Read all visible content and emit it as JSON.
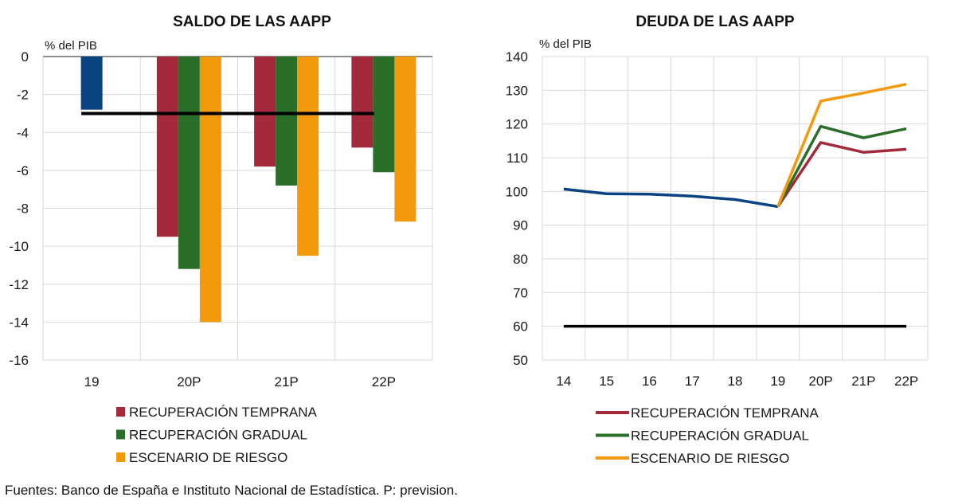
{
  "colors": {
    "temprana": "#a32a3a",
    "gradual": "#2a6e2a",
    "riesgo": "#f29a0c",
    "historical": "#0b4381",
    "reference": "#000000",
    "grid": "#d9d9d9"
  },
  "chart_data": [
    {
      "type": "bar",
      "title": "SALDO DE LAS AAPP",
      "unit_label": "% del PIB",
      "categories": [
        "19",
        "20P",
        "21P",
        "22P"
      ],
      "ylim": [
        -16,
        0
      ],
      "yticks": [
        0,
        -2,
        -4,
        -6,
        -8,
        -10,
        -12,
        -14,
        -16
      ],
      "grid": true,
      "historical": {
        "category": "19",
        "value": -2.8
      },
      "series": [
        {
          "name": "RECUPERACIÓN TEMPRANA",
          "values": [
            null,
            -9.5,
            -5.8,
            -4.8
          ]
        },
        {
          "name": "RECUPERACIÓN GRADUAL",
          "values": [
            null,
            -11.2,
            -6.8,
            -6.1
          ]
        },
        {
          "name": "ESCENARIO DE RIESGO",
          "values": [
            null,
            -14.0,
            -10.5,
            -8.7
          ]
        }
      ],
      "reference_line": {
        "value": -3,
        "from": "19",
        "to": "22P"
      },
      "legend_position": "bottom-left"
    },
    {
      "type": "line",
      "title": "DEUDA DE LAS AAPP",
      "unit_label": "% del PIB",
      "x": [
        "14",
        "15",
        "16",
        "17",
        "18",
        "19",
        "20P",
        "21P",
        "22P"
      ],
      "ylim": [
        50,
        140
      ],
      "yticks": [
        140,
        130,
        120,
        110,
        100,
        90,
        80,
        70,
        60,
        50
      ],
      "grid": true,
      "historical": {
        "x": [
          "14",
          "15",
          "16",
          "17",
          "18",
          "19"
        ],
        "values": [
          100.7,
          99.3,
          99.2,
          98.6,
          97.6,
          95.5
        ]
      },
      "series": [
        {
          "name": "RECUPERACIÓN TEMPRANA",
          "x": [
            "19",
            "20P",
            "21P",
            "22P"
          ],
          "values": [
            95.5,
            114.5,
            111.6,
            112.5
          ]
        },
        {
          "name": "RECUPERACIÓN GRADUAL",
          "x": [
            "19",
            "20P",
            "21P",
            "22P"
          ],
          "values": [
            95.5,
            119.3,
            115.9,
            118.6
          ]
        },
        {
          "name": "ESCENARIO DE RIESGO",
          "x": [
            "19",
            "20P",
            "21P",
            "22P"
          ],
          "values": [
            95.5,
            126.8,
            129.2,
            131.8
          ]
        }
      ],
      "reference_line": {
        "value": 60,
        "from": "14",
        "to": "22P"
      },
      "legend_position": "bottom"
    }
  ],
  "footer": {
    "source": "Fuentes: Banco de España e Instituto Nacional de Estadística. P: prevision."
  }
}
